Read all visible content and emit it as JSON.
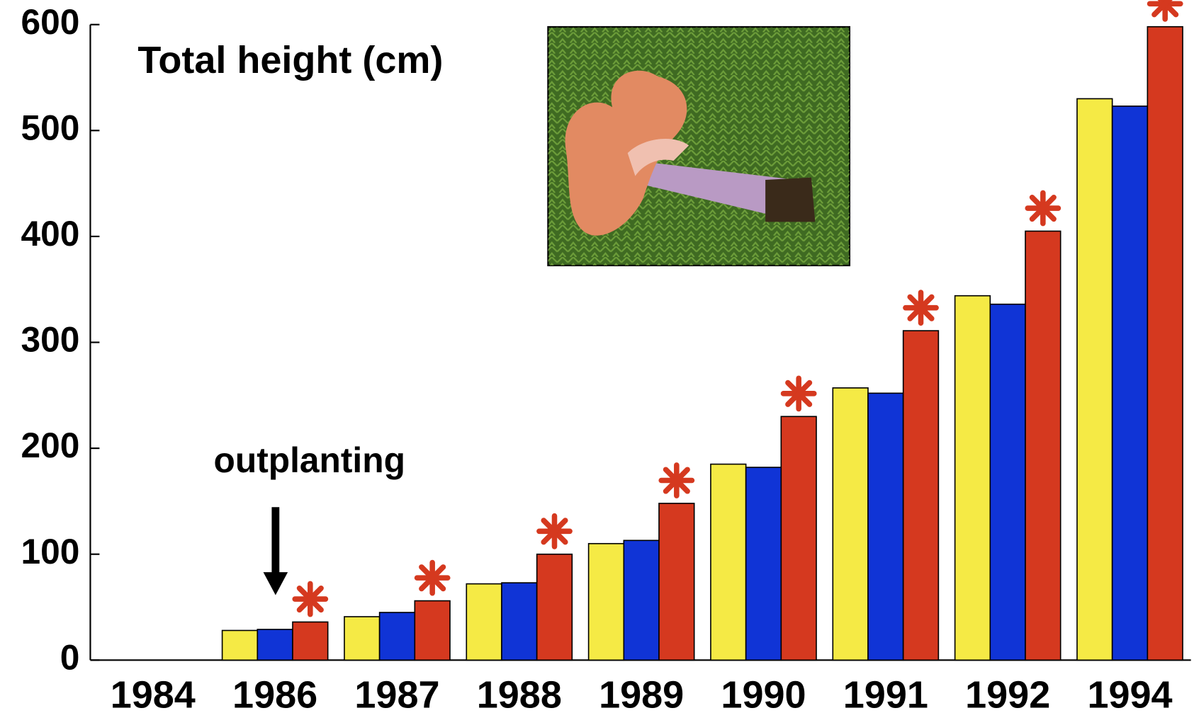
{
  "chart_data": {
    "type": "bar",
    "title": "Total height (cm)",
    "annotations": [
      {
        "text": "outplanting",
        "category": 1
      }
    ],
    "categories": [
      "1984",
      "1986",
      "1987",
      "1988",
      "1989",
      "1990",
      "1991",
      "1992",
      "1994"
    ],
    "series": [
      {
        "color": "#f5ea45",
        "values": [
          null,
          28,
          41,
          72,
          110,
          185,
          257,
          344,
          530
        ]
      },
      {
        "color": "#1034d6",
        "values": [
          null,
          29,
          45,
          73,
          113,
          182,
          252,
          336,
          523
        ]
      },
      {
        "color": "#d5391f",
        "values": [
          null,
          36,
          56,
          100,
          148,
          230,
          311,
          405,
          598
        ]
      }
    ],
    "ylim": [
      0,
      600
    ],
    "yticks": [
      0,
      100,
      200,
      300,
      400,
      500,
      600
    ]
  }
}
